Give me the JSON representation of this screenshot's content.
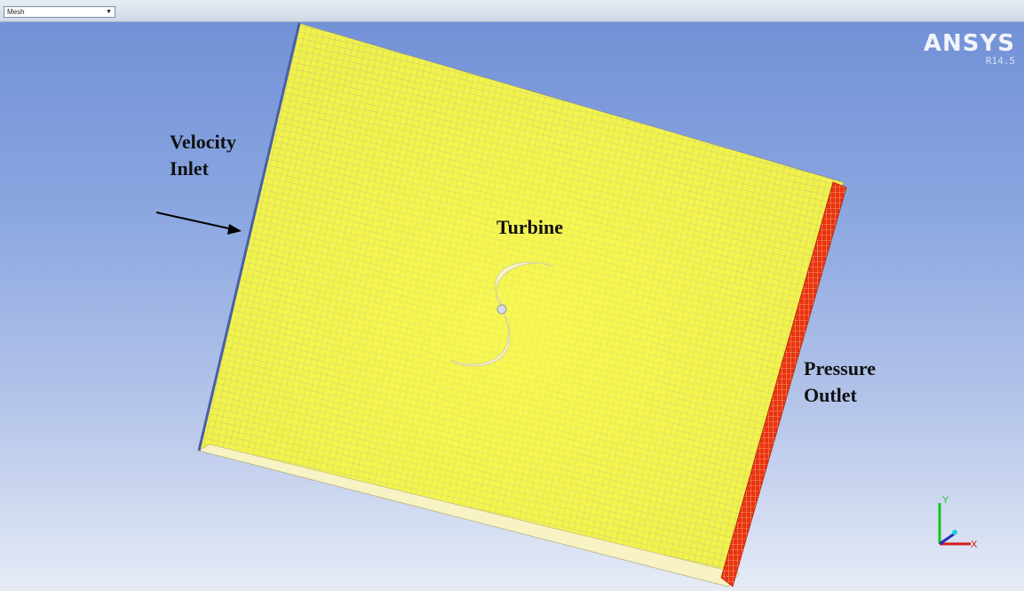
{
  "toolbar": {
    "display_select": "Mesh"
  },
  "logo": {
    "brand": "ANSYS",
    "version": "R14.5"
  },
  "labels": {
    "inlet_line1": "Velocity",
    "inlet_line2": "Inlet",
    "turbine": "Turbine",
    "outlet_line1": "Pressure",
    "outlet_line2": "Outlet"
  },
  "triad": {
    "x": "X",
    "y": "Y"
  },
  "colors": {
    "mesh": "#f2f23c",
    "outlet": "#e8340f",
    "inlet": "#4a5fa8",
    "turbine": "#f7f4c8",
    "background_top": "#6f8fd6",
    "background_bottom": "#e6ebf6"
  }
}
